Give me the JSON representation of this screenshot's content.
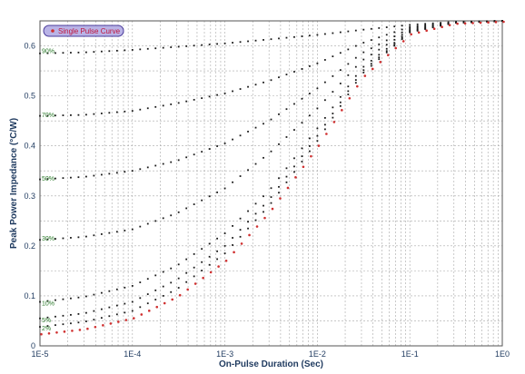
{
  "chart_data": {
    "type": "scatter",
    "title": "",
    "xlabel": "On-Pulse Duration (Sec)",
    "ylabel": "Peak Power Impedance (°C/W)",
    "x_scale": "log",
    "xlim": [
      1e-05,
      1
    ],
    "ylim": [
      0,
      0.65
    ],
    "x_ticks": [
      {
        "value": 1e-05,
        "label": "1E-5"
      },
      {
        "value": 0.0001,
        "label": "1E-4"
      },
      {
        "value": 0.001,
        "label": "1E-3"
      },
      {
        "value": 0.01,
        "label": "1E-2"
      },
      {
        "value": 0.1,
        "label": "1E-1"
      },
      {
        "value": 1,
        "label": "1E0"
      }
    ],
    "y_ticks": [
      {
        "value": 0,
        "label": "0"
      },
      {
        "value": 0.1,
        "label": "0.1"
      },
      {
        "value": 0.2,
        "label": "0.2"
      },
      {
        "value": 0.3,
        "label": "0.3"
      },
      {
        "value": 0.4,
        "label": "0.4"
      },
      {
        "value": 0.5,
        "label": "0.5"
      },
      {
        "value": 0.6,
        "label": "0.6"
      }
    ],
    "grid": true,
    "legend": {
      "position": "top-left",
      "entries": [
        "Single Pulse Curve"
      ]
    },
    "colors": {
      "series": "#1a1a1a",
      "single_pulse": "#d03030",
      "axis_text": "#1f3a5f",
      "label": "#2a7a2a"
    },
    "series": [
      {
        "name": "",
        "label": "90%",
        "label_x": 1e-05,
        "label_y": 0.59,
        "color": "#1a1a1a",
        "points": [
          [
            1e-05,
            0.585
          ],
          [
            3e-05,
            0.587
          ],
          [
            0.0001,
            0.592
          ],
          [
            0.0003,
            0.598
          ],
          [
            0.001,
            0.605
          ],
          [
            0.003,
            0.613
          ],
          [
            0.01,
            0.622
          ],
          [
            0.03,
            0.632
          ],
          [
            0.1,
            0.642
          ],
          [
            0.3,
            0.648
          ],
          [
            1,
            0.65
          ]
        ]
      },
      {
        "name": "",
        "label": "70%",
        "label_x": 1e-05,
        "label_y": 0.462,
        "color": "#1a1a1a",
        "points": [
          [
            1e-05,
            0.46
          ],
          [
            3e-05,
            0.462
          ],
          [
            0.0001,
            0.47
          ],
          [
            0.0003,
            0.485
          ],
          [
            0.001,
            0.505
          ],
          [
            0.003,
            0.53
          ],
          [
            0.01,
            0.565
          ],
          [
            0.03,
            0.605
          ],
          [
            0.1,
            0.638
          ],
          [
            0.3,
            0.647
          ],
          [
            1,
            0.65
          ]
        ]
      },
      {
        "name": "",
        "label": "50%",
        "label_x": 1e-05,
        "label_y": 0.335,
        "color": "#1a1a1a",
        "points": [
          [
            1e-05,
            0.333
          ],
          [
            3e-05,
            0.338
          ],
          [
            0.0001,
            0.35
          ],
          [
            0.0003,
            0.37
          ],
          [
            0.001,
            0.405
          ],
          [
            0.003,
            0.45
          ],
          [
            0.01,
            0.515
          ],
          [
            0.03,
            0.585
          ],
          [
            0.1,
            0.635
          ],
          [
            0.3,
            0.647
          ],
          [
            1,
            0.65
          ]
        ]
      },
      {
        "name": "",
        "label": "30%",
        "label_x": 1e-05,
        "label_y": 0.215,
        "color": "#1a1a1a",
        "points": [
          [
            1e-05,
            0.212
          ],
          [
            3e-05,
            0.218
          ],
          [
            0.0001,
            0.233
          ],
          [
            0.0003,
            0.265
          ],
          [
            0.001,
            0.315
          ],
          [
            0.003,
            0.385
          ],
          [
            0.01,
            0.475
          ],
          [
            0.03,
            0.57
          ],
          [
            0.1,
            0.632
          ],
          [
            0.3,
            0.647
          ],
          [
            1,
            0.65
          ]
        ]
      },
      {
        "name": "",
        "label": "10%",
        "label_x": 1e-05,
        "label_y": 0.085,
        "color": "#1a1a1a",
        "points": [
          [
            1e-05,
            0.088
          ],
          [
            3e-05,
            0.098
          ],
          [
            0.0001,
            0.12
          ],
          [
            0.0003,
            0.16
          ],
          [
            0.001,
            0.225
          ],
          [
            0.003,
            0.31
          ],
          [
            0.01,
            0.435
          ],
          [
            0.03,
            0.555
          ],
          [
            0.1,
            0.63
          ],
          [
            0.3,
            0.646
          ],
          [
            1,
            0.65
          ]
        ]
      },
      {
        "name": "",
        "label": "5%",
        "label_x": 1e-05,
        "label_y": 0.052,
        "color": "#1a1a1a",
        "points": [
          [
            1e-05,
            0.055
          ],
          [
            3e-05,
            0.065
          ],
          [
            0.0001,
            0.088
          ],
          [
            0.0003,
            0.132
          ],
          [
            0.001,
            0.2
          ],
          [
            0.003,
            0.292
          ],
          [
            0.01,
            0.42
          ],
          [
            0.03,
            0.548
          ],
          [
            0.1,
            0.628
          ],
          [
            0.3,
            0.646
          ],
          [
            1,
            0.65
          ]
        ]
      },
      {
        "name": "",
        "label": "2%",
        "label_x": 1e-05,
        "label_y": 0.035,
        "color": "#1a1a1a",
        "points": [
          [
            1e-05,
            0.038
          ],
          [
            3e-05,
            0.048
          ],
          [
            0.0001,
            0.07
          ],
          [
            0.0003,
            0.113
          ],
          [
            0.001,
            0.185
          ],
          [
            0.003,
            0.28
          ],
          [
            0.01,
            0.41
          ],
          [
            0.03,
            0.543
          ],
          [
            0.1,
            0.627
          ],
          [
            0.3,
            0.646
          ],
          [
            1,
            0.65
          ]
        ]
      },
      {
        "name": "Single Pulse Curve",
        "label": "",
        "color": "#d03030",
        "points": [
          [
            1e-05,
            0.025
          ],
          [
            3e-05,
            0.035
          ],
          [
            0.0001,
            0.057
          ],
          [
            0.0003,
            0.1
          ],
          [
            0.001,
            0.172
          ],
          [
            0.003,
            0.27
          ],
          [
            0.01,
            0.402
          ],
          [
            0.03,
            0.538
          ],
          [
            0.1,
            0.625
          ],
          [
            0.3,
            0.646
          ],
          [
            1,
            0.65
          ]
        ]
      }
    ]
  }
}
